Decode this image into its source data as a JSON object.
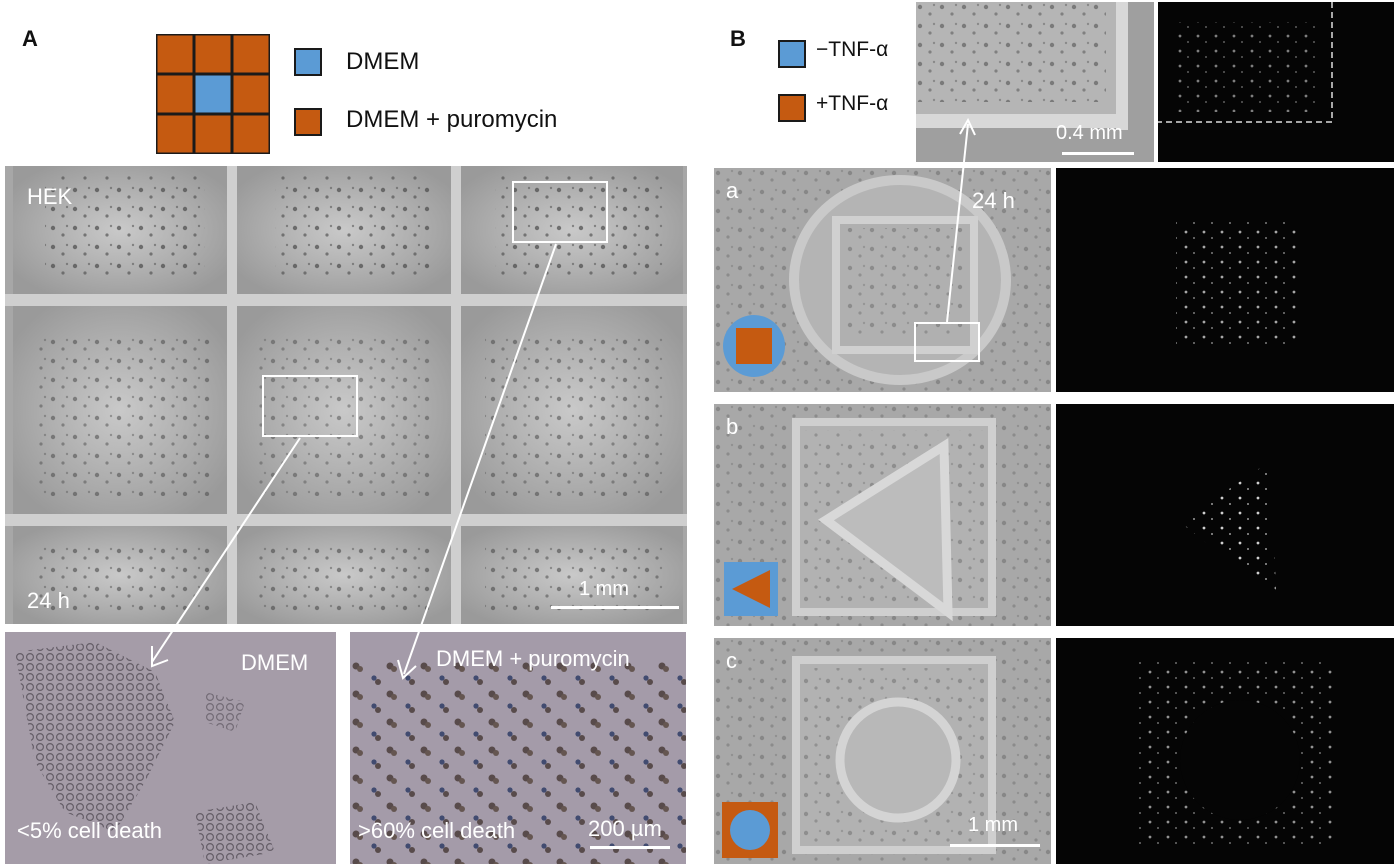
{
  "panel_a": {
    "letter": "A",
    "legend": [
      {
        "label": "DMEM",
        "color": "#5B9BD5"
      },
      {
        "label": "DMEM + puromycin",
        "color": "#C55A11"
      }
    ],
    "grid_colors": {
      "outer": "#C55A11",
      "center": "#5B9BD5",
      "border": "#1a1a1a"
    },
    "main_image": {
      "cell_line": "HEK",
      "time": "24 h",
      "scale": "1 mm"
    },
    "zoom_left": {
      "medium": "DMEM",
      "result": "<5% cell death"
    },
    "zoom_right": {
      "medium": "DMEM + puromycin",
      "result": ">60% cell death",
      "scale": "200 µm"
    }
  },
  "panel_b": {
    "letter": "B",
    "legend": [
      {
        "label": "−TNF-α",
        "color": "#5B9BD5"
      },
      {
        "label": "+TNF-α",
        "color": "#C55A11"
      }
    ],
    "inset_scale": "0.4 mm",
    "arrow_time": "24 h",
    "rows": [
      {
        "letter": "a",
        "shape": "square-in-circle"
      },
      {
        "letter": "b",
        "shape": "triangle-in-square"
      },
      {
        "letter": "c",
        "shape": "circle-in-square"
      }
    ],
    "bottom_scale": "1 mm"
  }
}
